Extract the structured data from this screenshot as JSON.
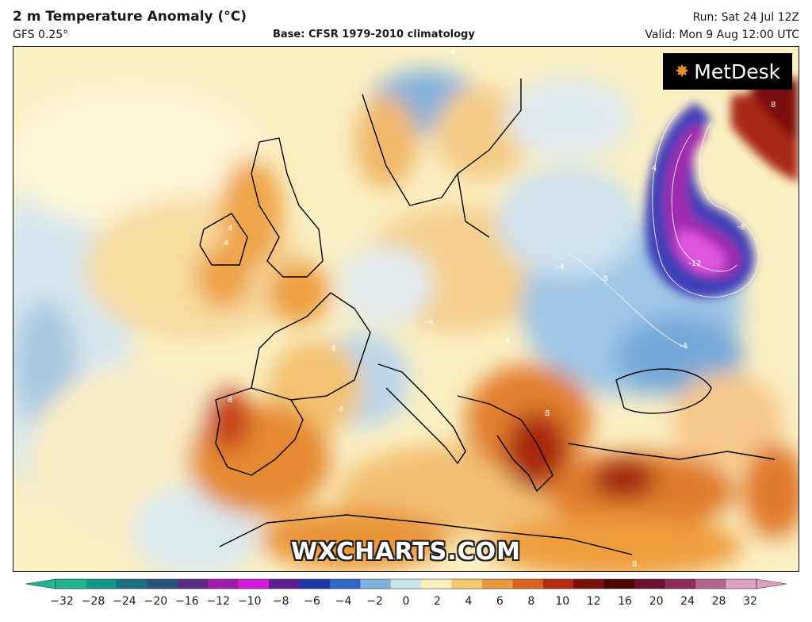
{
  "header": {
    "title": "2 m Temperature Anomaly (°C)",
    "model": "GFS 0.25°",
    "base": "Base: CFSR 1979-2010 climatology",
    "run": "Run: Sat 24 Jul 12Z",
    "valid": "Valid: Mon 9 Aug 12:00 UTC"
  },
  "brand": {
    "name": "MetDesk",
    "icon": "sunburst-logo-icon"
  },
  "watermark": "WXCHARTS.COM",
  "colorbar": {
    "ticks": [
      "−32",
      "−28",
      "−24",
      "−20",
      "−16",
      "−12",
      "−10",
      "−8",
      "−6",
      "−4",
      "−2",
      "0",
      "2",
      "4",
      "6",
      "8",
      "10",
      "12",
      "16",
      "20",
      "24",
      "28",
      "32"
    ],
    "colors": [
      "#1fb58f",
      "#139a86",
      "#1d6f7f",
      "#26527c",
      "#5b2a86",
      "#a01ca8",
      "#d01ad6",
      "#5a1e8f",
      "#2233a8",
      "#2f67c4",
      "#7fb2de",
      "#cfe3ef",
      "#fbeec0",
      "#f3c86e",
      "#ea9a3b",
      "#d9621e",
      "#b42a12",
      "#7a0f0a",
      "#4a0606",
      "#6b1030",
      "#8e2a55",
      "#b7628a",
      "#dca0c0"
    ]
  },
  "contour_labels": [
    "4",
    "4",
    "4",
    "4",
    "4",
    "4",
    "-4",
    "-4",
    "-4",
    "-8",
    "-12",
    "8",
    "8",
    "8",
    "8",
    "-8",
    "4"
  ]
}
